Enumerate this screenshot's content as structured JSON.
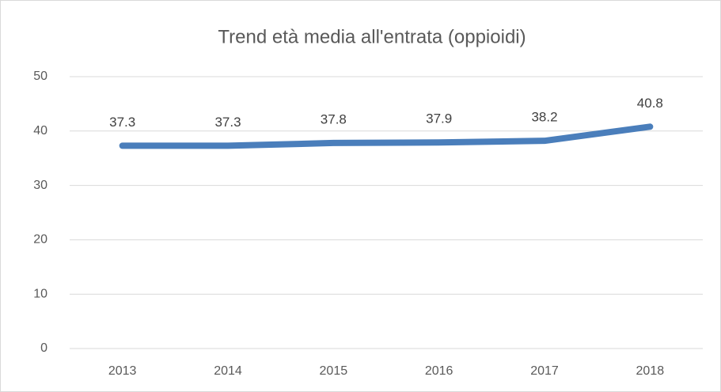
{
  "chart_data": {
    "type": "line",
    "title": "Trend età media all'entrata (oppioidi)",
    "categories": [
      "2013",
      "2014",
      "2015",
      "2016",
      "2017",
      "2018"
    ],
    "values": [
      37.3,
      37.3,
      37.8,
      37.9,
      38.2,
      40.8
    ],
    "color": "#4a7ebb",
    "ylim": [
      0,
      50
    ],
    "yticks": [
      0,
      10,
      20,
      30,
      40,
      50
    ],
    "grid": true
  }
}
